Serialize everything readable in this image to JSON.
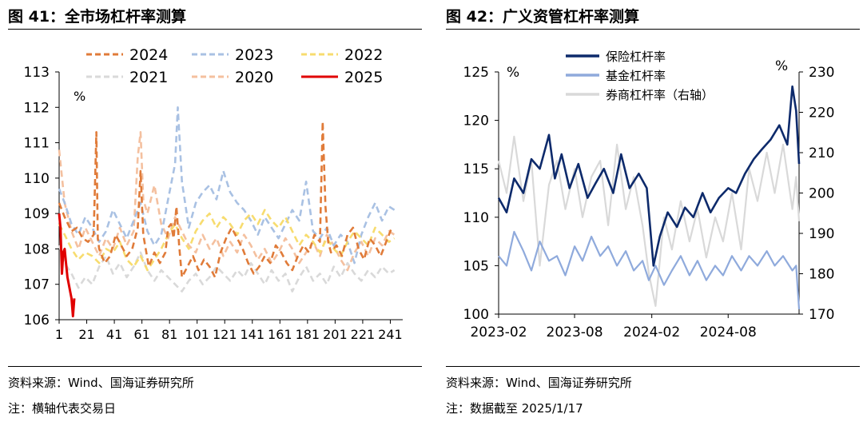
{
  "left": {
    "title": "图 41：全市场杠杆率测算",
    "source": "资料来源：Wind、国海证券研究所",
    "note": "注：横轴代表交易日",
    "chart_data": {
      "type": "line",
      "ylabel": "%",
      "ylim": [
        106,
        113
      ],
      "yticks": [
        "106",
        "107",
        "108",
        "109",
        "110",
        "111",
        "112",
        "113"
      ],
      "xticks": [
        "1",
        "21",
        "41",
        "61",
        "81",
        "101",
        "121",
        "141",
        "161",
        "181",
        "201",
        "221",
        "241"
      ],
      "xlim": [
        1,
        250
      ],
      "legend": "top",
      "series": [
        {
          "name": "2024",
          "color": "#E07B39",
          "dash": "8,5",
          "x": [
            1,
            5,
            10,
            14,
            18,
            22,
            26,
            28,
            29,
            30,
            34,
            38,
            42,
            46,
            50,
            54,
            58,
            60,
            62,
            66,
            70,
            74,
            78,
            80,
            82,
            84,
            86,
            88,
            90,
            94,
            98,
            102,
            106,
            110,
            114,
            118,
            122,
            126,
            130,
            134,
            138,
            142,
            146,
            150,
            154,
            158,
            162,
            166,
            170,
            174,
            178,
            182,
            186,
            190,
            192,
            194,
            196,
            198,
            202,
            206,
            210,
            214,
            218,
            222,
            226,
            230,
            234,
            238,
            242
          ],
          "values": [
            109.3,
            108.9,
            108.5,
            108.6,
            108.3,
            108.2,
            108.4,
            111.3,
            108.3,
            108.0,
            107.6,
            107.8,
            108.4,
            108.1,
            107.8,
            108.0,
            108.6,
            110.2,
            108.4,
            107.5,
            107.9,
            107.6,
            107.9,
            108.6,
            108.7,
            108.3,
            109.2,
            108.1,
            107.2,
            107.5,
            107.8,
            107.4,
            107.7,
            107.5,
            107.2,
            107.9,
            108.3,
            108.6,
            108.3,
            108.0,
            107.6,
            107.3,
            107.5,
            107.8,
            107.6,
            108.1,
            107.9,
            107.6,
            107.4,
            107.8,
            108.1,
            107.9,
            108.4,
            108.2,
            111.6,
            109.2,
            108.2,
            107.9,
            108.1,
            107.8,
            108.4,
            108.6,
            108.0,
            107.7,
            108.3,
            108.1,
            107.8,
            108.2,
            108.6
          ]
        },
        {
          "name": "2023",
          "color": "#A9C1E3",
          "dash": "8,5",
          "x": [
            1,
            5,
            10,
            15,
            20,
            25,
            30,
            35,
            40,
            45,
            50,
            55,
            60,
            65,
            70,
            75,
            80,
            85,
            87,
            90,
            95,
            100,
            105,
            110,
            115,
            120,
            125,
            130,
            135,
            140,
            145,
            150,
            155,
            160,
            165,
            170,
            175,
            180,
            185,
            190,
            195,
            200,
            205,
            210,
            215,
            220,
            225,
            230,
            235,
            240,
            244
          ],
          "values": [
            109.7,
            109.3,
            108.7,
            108.4,
            108.9,
            108.6,
            108.2,
            108.5,
            109.1,
            108.7,
            108.3,
            108.8,
            109.3,
            108.5,
            108.1,
            108.4,
            109.4,
            110.4,
            112.0,
            109.9,
            108.6,
            109.3,
            109.6,
            109.8,
            109.4,
            110.2,
            109.6,
            109.3,
            109.1,
            108.8,
            108.4,
            108.9,
            108.6,
            108.3,
            108.7,
            109.1,
            108.8,
            109.9,
            108.5,
            108.3,
            108.6,
            108.1,
            108.4,
            108.2,
            107.6,
            108.4,
            108.9,
            109.3,
            108.8,
            109.2,
            109.1
          ]
        },
        {
          "name": "2022",
          "color": "#F7DC6F",
          "dash": "8,5",
          "x": [
            1,
            5,
            10,
            15,
            20,
            25,
            30,
            35,
            40,
            45,
            50,
            55,
            60,
            65,
            70,
            75,
            80,
            85,
            90,
            95,
            100,
            105,
            110,
            115,
            120,
            125,
            130,
            135,
            140,
            145,
            150,
            155,
            160,
            165,
            170,
            175,
            180,
            185,
            190,
            195,
            200,
            205,
            210,
            215,
            220,
            225,
            230,
            235,
            240,
            244
          ],
          "values": [
            108.7,
            108.4,
            108.0,
            107.7,
            107.9,
            107.8,
            107.6,
            108.0,
            107.9,
            108.2,
            107.7,
            107.5,
            107.8,
            107.4,
            107.7,
            108.0,
            108.4,
            108.7,
            108.3,
            108.0,
            108.5,
            108.8,
            109.0,
            108.6,
            108.9,
            108.7,
            108.4,
            108.8,
            109.0,
            108.7,
            109.1,
            108.8,
            108.6,
            108.9,
            108.5,
            108.1,
            108.4,
            108.2,
            107.9,
            108.3,
            108.0,
            107.8,
            108.2,
            108.5,
            108.3,
            108.1,
            108.6,
            108.4,
            108.2,
            108.3
          ]
        },
        {
          "name": "2021",
          "color": "#D9D9D9",
          "dash": "8,5",
          "x": [
            1,
            5,
            10,
            15,
            20,
            25,
            30,
            35,
            40,
            45,
            50,
            55,
            60,
            65,
            70,
            75,
            80,
            85,
            90,
            95,
            100,
            105,
            110,
            115,
            120,
            125,
            130,
            135,
            140,
            145,
            150,
            155,
            160,
            165,
            170,
            175,
            180,
            185,
            190,
            195,
            200,
            205,
            210,
            215,
            220,
            225,
            230,
            235,
            240,
            244
          ],
          "values": [
            108.1,
            107.6,
            107.3,
            106.9,
            107.2,
            107.0,
            107.5,
            107.8,
            107.3,
            107.6,
            107.2,
            107.5,
            107.9,
            107.4,
            107.1,
            107.4,
            107.2,
            107.0,
            106.8,
            107.1,
            107.3,
            107.0,
            107.2,
            107.5,
            107.3,
            107.1,
            107.4,
            107.2,
            107.6,
            107.3,
            107.0,
            107.4,
            107.1,
            107.3,
            106.8,
            107.2,
            107.5,
            107.1,
            107.3,
            107.0,
            107.5,
            107.2,
            107.6,
            107.3,
            107.1,
            107.4,
            107.2,
            107.5,
            107.3,
            107.4
          ]
        },
        {
          "name": "2020",
          "color": "#F4C09F",
          "dash": "8,5",
          "x": [
            1,
            5,
            10,
            15,
            20,
            25,
            30,
            35,
            40,
            45,
            50,
            55,
            58,
            60,
            62,
            65,
            70,
            75,
            80,
            85,
            90,
            95,
            100,
            105,
            110,
            115,
            120,
            125,
            130,
            135,
            140,
            145,
            150,
            155,
            160,
            165,
            170,
            175,
            180,
            185,
            190,
            195,
            200,
            205,
            210,
            215,
            220,
            225,
            230,
            235,
            240,
            244
          ],
          "values": [
            110.8,
            109.3,
            108.5,
            108.0,
            108.6,
            108.2,
            107.8,
            108.3,
            108.0,
            108.6,
            108.1,
            108.5,
            110.6,
            111.3,
            109.4,
            109.0,
            109.8,
            108.7,
            108.3,
            108.9,
            108.5,
            108.1,
            107.9,
            108.4,
            108.0,
            108.3,
            107.8,
            108.2,
            107.9,
            108.4,
            108.1,
            107.7,
            108.0,
            107.6,
            107.9,
            108.3,
            108.0,
            107.6,
            107.9,
            108.2,
            107.8,
            108.4,
            108.1,
            107.7,
            107.4,
            107.9,
            108.2,
            107.8,
            108.3,
            108.1,
            108.5,
            108.4
          ]
        },
        {
          "name": "2025",
          "color": "#E00000",
          "dash": "",
          "x": [
            1,
            2,
            3,
            4,
            5,
            6,
            7,
            8,
            9,
            10,
            11,
            12
          ],
          "values": [
            109.0,
            108.6,
            107.3,
            107.9,
            108.0,
            107.6,
            107.2,
            107.0,
            106.8,
            106.6,
            106.1,
            106.6
          ]
        }
      ]
    }
  },
  "right": {
    "title": "图 42：广义资管杠杆率测算",
    "source": "资料来源：Wind、国海证券研究所",
    "note": "注：数据截至 2025/1/17",
    "chart_data": {
      "type": "line",
      "ylabel_left": "%",
      "ylabel_right": "%",
      "ylim_left": [
        100,
        125
      ],
      "ylim_right": [
        170,
        230
      ],
      "yticks_left": [
        "100",
        "105",
        "110",
        "115",
        "120",
        "125"
      ],
      "yticks_right": [
        "170",
        "180",
        "190",
        "200",
        "210",
        "220",
        "230"
      ],
      "xticks": [
        "2023-02",
        "2023-08",
        "2024-02",
        "2024-08"
      ],
      "xlim": [
        "2023-02-01",
        "2025-01-17"
      ],
      "legend": "top",
      "series": [
        {
          "name": "保险杠杆率",
          "axis": "left",
          "color": "#0D2A6B",
          "width": 2.6,
          "x": [
            "2023-02-01",
            "2023-02-20",
            "2023-03-10",
            "2023-04-01",
            "2023-04-20",
            "2023-05-10",
            "2023-06-01",
            "2023-06-15",
            "2023-07-01",
            "2023-07-20",
            "2023-08-10",
            "2023-09-01",
            "2023-09-20",
            "2023-10-10",
            "2023-11-01",
            "2023-11-20",
            "2023-12-10",
            "2024-01-01",
            "2024-01-20",
            "2024-02-05",
            "2024-02-20",
            "2024-03-10",
            "2024-04-01",
            "2024-04-20",
            "2024-05-10",
            "2024-06-01",
            "2024-06-20",
            "2024-07-10",
            "2024-08-01",
            "2024-08-20",
            "2024-09-10",
            "2024-10-01",
            "2024-10-20",
            "2024-11-10",
            "2024-12-01",
            "2024-12-20",
            "2025-01-01",
            "2025-01-10",
            "2025-01-17"
          ],
          "values": [
            112.0,
            110.5,
            114.0,
            112.5,
            116.0,
            115.0,
            118.5,
            114.0,
            116.5,
            113.0,
            115.5,
            112.0,
            113.5,
            115.0,
            112.5,
            116.5,
            113.0,
            114.5,
            113.0,
            105.0,
            108.0,
            110.5,
            109.0,
            111.0,
            110.0,
            112.5,
            110.5,
            112.0,
            113.0,
            112.5,
            114.5,
            116.0,
            117.0,
            118.0,
            119.5,
            117.5,
            123.5,
            121.0,
            115.5
          ]
        },
        {
          "name": "基金杠杆率",
          "axis": "left",
          "color": "#8FAADC",
          "width": 2.2,
          "x": [
            "2023-02-01",
            "2023-02-20",
            "2023-03-10",
            "2023-04-01",
            "2023-04-20",
            "2023-05-10",
            "2023-06-01",
            "2023-06-20",
            "2023-07-10",
            "2023-08-01",
            "2023-08-20",
            "2023-09-10",
            "2023-10-01",
            "2023-10-20",
            "2023-11-10",
            "2023-12-01",
            "2023-12-20",
            "2024-01-10",
            "2024-01-25",
            "2024-02-10",
            "2024-03-01",
            "2024-03-20",
            "2024-04-10",
            "2024-05-01",
            "2024-05-20",
            "2024-06-10",
            "2024-07-01",
            "2024-07-20",
            "2024-08-10",
            "2024-09-01",
            "2024-09-20",
            "2024-10-10",
            "2024-11-01",
            "2024-11-20",
            "2024-12-10",
            "2025-01-01",
            "2025-01-10",
            "2025-01-17"
          ],
          "values": [
            106.0,
            105.0,
            108.5,
            106.5,
            104.5,
            107.5,
            105.5,
            106.0,
            104.0,
            107.0,
            105.5,
            108.0,
            106.0,
            107.0,
            105.0,
            106.5,
            104.5,
            105.5,
            103.5,
            105.0,
            103.0,
            104.5,
            106.0,
            104.0,
            105.5,
            103.5,
            105.0,
            104.0,
            106.0,
            104.5,
            106.0,
            105.0,
            106.5,
            105.0,
            106.0,
            104.5,
            105.0,
            100.5
          ]
        },
        {
          "name": "券商杠杆率（右轴）",
          "axis": "right",
          "color": "#D9D9D9",
          "width": 2.2,
          "x": [
            "2023-02-01",
            "2023-02-20",
            "2023-03-10",
            "2023-04-01",
            "2023-04-20",
            "2023-05-10",
            "2023-06-01",
            "2023-06-20",
            "2023-07-10",
            "2023-08-01",
            "2023-08-20",
            "2023-09-10",
            "2023-10-01",
            "2023-10-20",
            "2023-11-10",
            "2023-12-01",
            "2023-12-20",
            "2024-01-10",
            "2024-01-25",
            "2024-02-10",
            "2024-03-01",
            "2024-03-20",
            "2024-04-10",
            "2024-05-01",
            "2024-05-20",
            "2024-06-10",
            "2024-07-01",
            "2024-07-20",
            "2024-08-10",
            "2024-09-01",
            "2024-09-20",
            "2024-10-10",
            "2024-11-01",
            "2024-11-20",
            "2024-12-10",
            "2025-01-01",
            "2025-01-10",
            "2025-01-17"
          ],
          "values": [
            208.0,
            200.0,
            214.0,
            198.0,
            208.0,
            182.0,
            202.0,
            208.0,
            196.0,
            206.0,
            194.0,
            204.0,
            208.0,
            192.0,
            212.0,
            196.0,
            204.0,
            192.0,
            180.0,
            172.0,
            194.0,
            186.0,
            198.0,
            188.0,
            196.0,
            184.0,
            194.0,
            188.0,
            200.0,
            186.0,
            206.0,
            198.0,
            210.0,
            200.0,
            212.0,
            196.0,
            204.0,
            193.0
          ]
        }
      ]
    }
  }
}
